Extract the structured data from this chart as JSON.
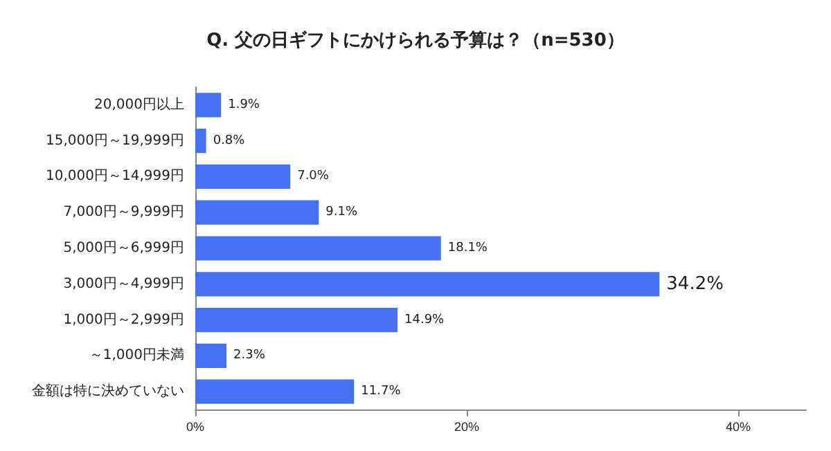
{
  "chart_data": {
    "type": "bar",
    "orientation": "horizontal",
    "title": "Q. 父の日ギフトにかけられる予算は？（n=530）",
    "categories": [
      "20,000円以上",
      "15,000円～19,999円",
      "10,000円～14,999円",
      "7,000円～9,999円",
      "5,000円～6,999円",
      "3,000円～4,999円",
      "1,000円～2,999円",
      "～1,000円未満",
      "金額は特に決めていない"
    ],
    "values": [
      1.9,
      0.8,
      7.0,
      9.1,
      18.1,
      34.2,
      14.9,
      2.3,
      11.7
    ],
    "value_labels": [
      "1.9%",
      "0.8%",
      "7.0%",
      "9.1%",
      "18.1%",
      "34.2%",
      "14.9%",
      "2.3%",
      "11.7%"
    ],
    "color": "#4472f0",
    "xlim": [
      0,
      45
    ],
    "xticks": [
      {
        "value": 0,
        "label": "0%"
      },
      {
        "value": 20,
        "label": "20%"
      },
      {
        "value": 40,
        "label": "40%"
      }
    ],
    "grid": false
  }
}
